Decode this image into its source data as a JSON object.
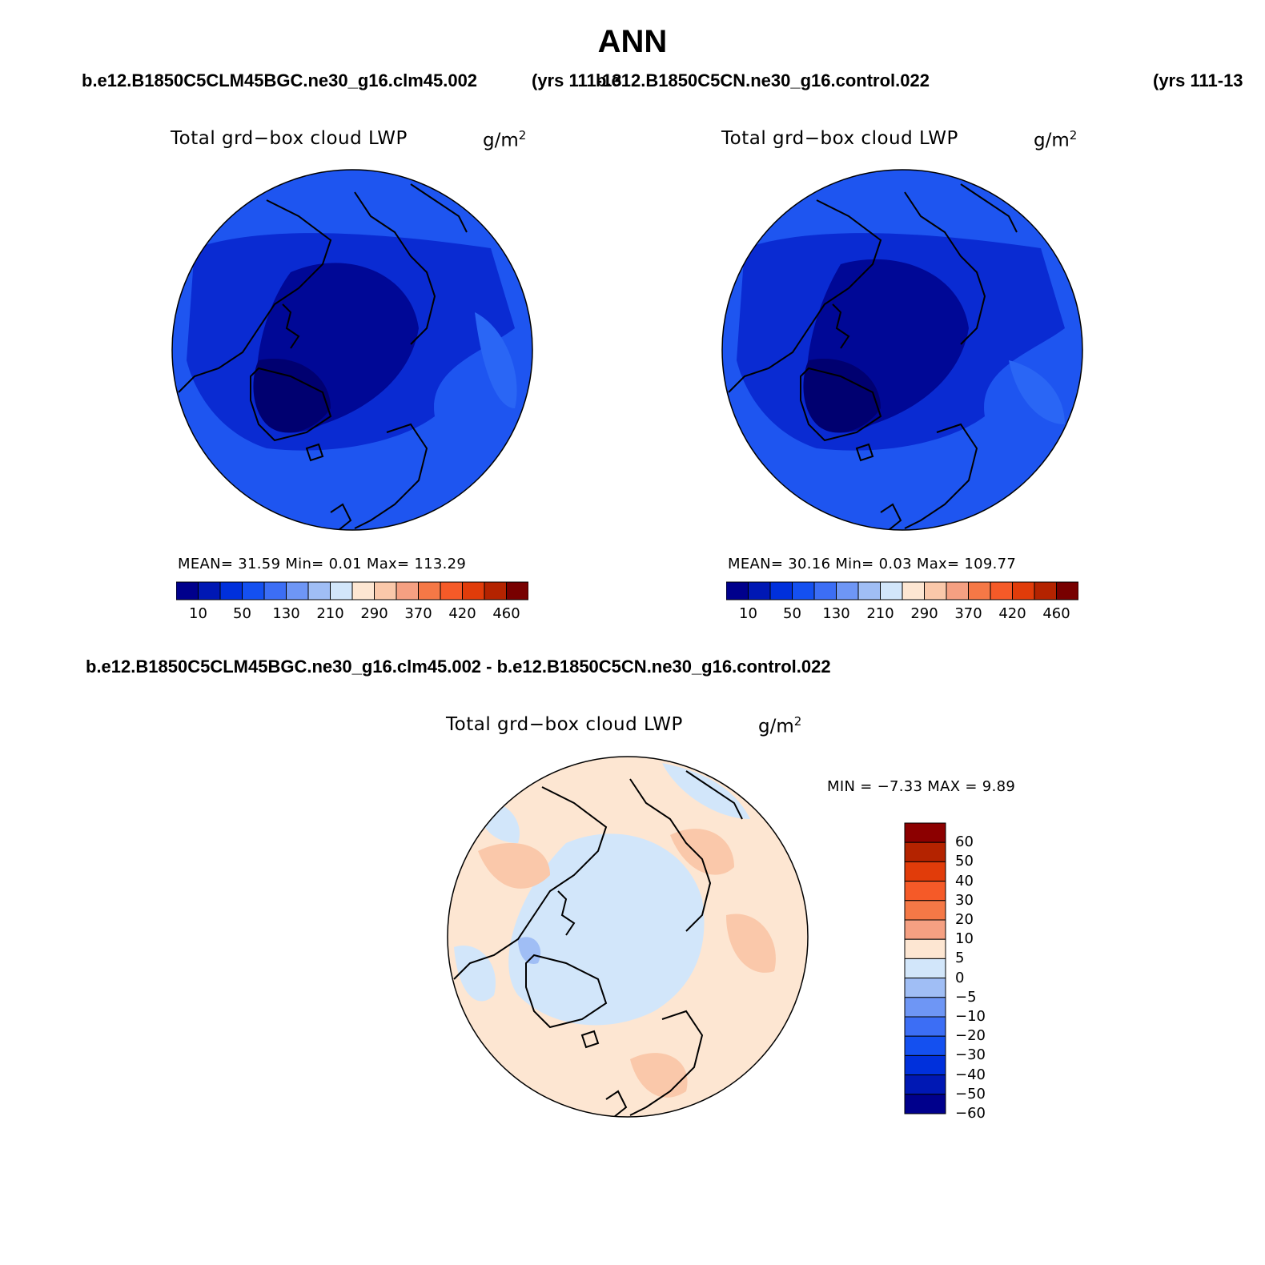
{
  "page": {
    "title": "ANN",
    "case1_header": "b.e12.B1850C5CLM45BGC.ne30_g16.clm45.002",
    "case1_years": "(yrs 111-13",
    "case2_header": "b.e12.B1850C5CN.ne30_g16.control.022",
    "case2_years": "(yrs 111-13",
    "diff_header": "b.e12.B1850C5CLM45BGC.ne30_g16.clm45.002 - b.e12.B1850C5CN.ne30_g16.control.022"
  },
  "panels": [
    {
      "variable": "Total grd−box cloud LWP",
      "units_base": "g/m",
      "units_exp": "2",
      "stats": "MEAN=   31.59   Min=     0.01   Max= 113.29"
    },
    {
      "variable": "Total grd−box cloud LWP",
      "units_base": "g/m",
      "units_exp": "2",
      "stats": "MEAN=   30.16   Min=     0.03   Max= 109.77"
    },
    {
      "variable": "Total grd−box cloud LWP",
      "units_base": "g/m",
      "units_exp": "2",
      "stats": "MIN =   −7.33  MAX =     9.89"
    }
  ],
  "colorbar_abs": {
    "colors": [
      "#00008c",
      "#0018b4",
      "#0030dc",
      "#1450f0",
      "#3c6ef5",
      "#6e96f5",
      "#a0bef5",
      "#d2e6fa",
      "#fde6d2",
      "#fac8aa",
      "#f5a082",
      "#f57846",
      "#f55a28",
      "#e13c0a",
      "#b42300",
      "#780000"
    ],
    "tick_labels": [
      "10",
      "50",
      "130",
      "210",
      "290",
      "370",
      "420",
      "460"
    ]
  },
  "colorbar_diff": {
    "colors": [
      "#8c0000",
      "#b42300",
      "#e13c0a",
      "#f55a28",
      "#f57846",
      "#f5a082",
      "#fde6d2",
      "#d2e6fa",
      "#a0bef5",
      "#6e96f5",
      "#3c6ef5",
      "#1450f0",
      "#0030dc",
      "#0018b4",
      "#00008c"
    ],
    "tick_labels": [
      "60",
      "50",
      "40",
      "30",
      "20",
      "10",
      "5",
      "0",
      "−5",
      "−10",
      "−20",
      "−30",
      "−40",
      "−50",
      "−60"
    ]
  },
  "map_fill": {
    "panel1_outer": "#1e55f0",
    "panel1_mid": "#0a2bd2",
    "panel1_inner": "#000896",
    "panel3_base": "#fde6d2",
    "panel3_neg": "#d2e6fa",
    "panel3_pos": "#fac8aa"
  }
}
